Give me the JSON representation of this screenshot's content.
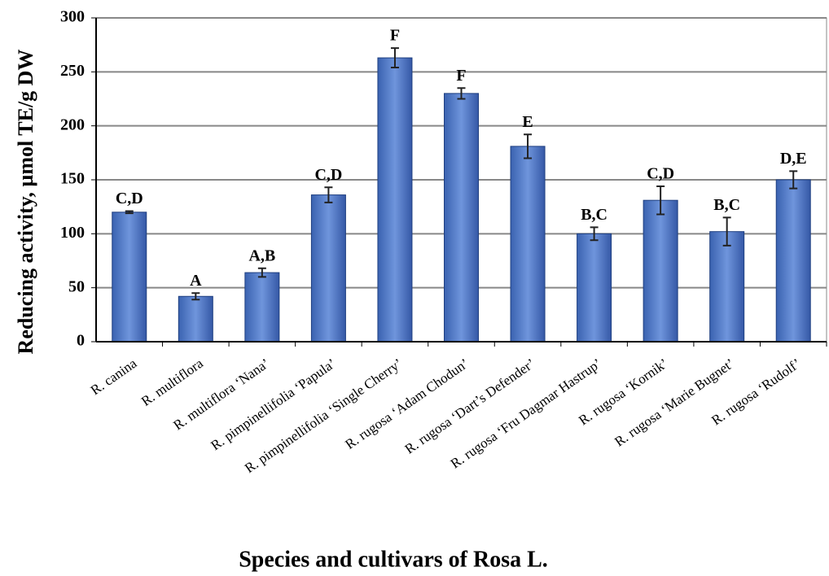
{
  "chart_data": {
    "type": "bar",
    "y_label": "Reducing activity, µmol TE/g DW",
    "x_label": "Species and cultivars of Rosa L.",
    "categories": [
      "R. canina",
      "R. multiflora",
      "R. multiflora ‘Nana’",
      "R. pimpinellifolia ‘Papula’",
      "R. pimpinellifolia ‘Single Cherry’",
      "R. rugosa ‘Adam Chodun’",
      "R. rugosa ‘Dart’s Defender’",
      "R. rugosa ‘Fru Dagmar Hastrup’",
      "R. rugosa ‘Kornik’",
      "R. rugosa ‘Marie Bugnet’",
      "R. rugosa ‘Rudolf’"
    ],
    "values": [
      120,
      42,
      64,
      136,
      263,
      230,
      181,
      100,
      131,
      102,
      150
    ],
    "errors": [
      1,
      3,
      4,
      7,
      9,
      5,
      11,
      6,
      13,
      13,
      8
    ],
    "annotations": [
      "C,D",
      "A",
      "A,B",
      "C,D",
      "F",
      "F",
      "E",
      "B,C",
      "C,D",
      "B,C",
      "D,E"
    ],
    "color": "#4472c4",
    "ylim": [
      0,
      300
    ],
    "yticks": [
      0,
      50,
      100,
      150,
      200,
      250,
      300
    ],
    "grid": true
  }
}
